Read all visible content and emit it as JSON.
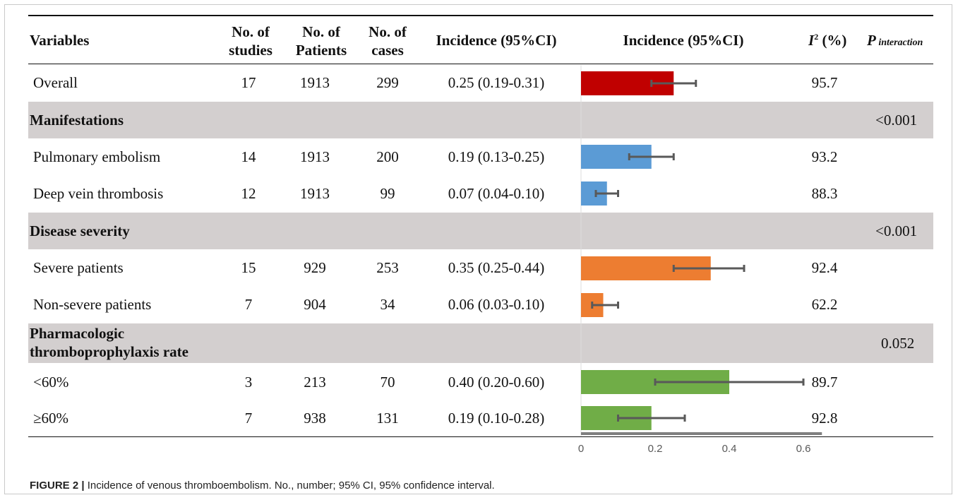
{
  "headers": {
    "variables": "Variables",
    "studies": [
      "No. of",
      "studies"
    ],
    "patients": [
      "No. of",
      "Patients"
    ],
    "cases": [
      "No. of",
      "cases"
    ],
    "incidence_text": "Incidence (95%CI)",
    "incidence_plot": "Incidence (95%CI)",
    "i2_letter": "I",
    "i2_sup": "2",
    "i2_unit": " (%)",
    "p_letter": "P",
    "p_sub": " interaction"
  },
  "rows": [
    {
      "kind": "data",
      "label": "Overall",
      "studies": "17",
      "patients": "1913",
      "cases": "299",
      "ci_text": "0.25 (0.19-0.31)",
      "i2": "95.7",
      "color": "#c00000"
    },
    {
      "kind": "group",
      "label": "Manifestations",
      "p": "<0.001"
    },
    {
      "kind": "data",
      "label": "Pulmonary embolism",
      "studies": "14",
      "patients": "1913",
      "cases": "200",
      "ci_text": "0.19 (0.13-0.25)",
      "i2": "93.2",
      "color": "#5b9bd5"
    },
    {
      "kind": "data",
      "label": "Deep vein thrombosis",
      "studies": "12",
      "patients": "1913",
      "cases": "99",
      "ci_text": "0.07 (0.04-0.10)",
      "i2": "88.3",
      "color": "#5b9bd5"
    },
    {
      "kind": "group",
      "label": "Disease severity",
      "p": "<0.001"
    },
    {
      "kind": "data",
      "label": "Severe patients",
      "studies": "15",
      "patients": "929",
      "cases": "253",
      "ci_text": "0.35 (0.25-0.44)",
      "i2": "92.4",
      "color": "#ed7d31"
    },
    {
      "kind": "data",
      "label": "Non-severe patients",
      "studies": "7",
      "patients": "904",
      "cases": "34",
      "ci_text": "0.06 (0.03-0.10)",
      "i2": "62.2",
      "color": "#ed7d31"
    },
    {
      "kind": "group",
      "label": [
        "Pharmacologic",
        "thromboprophylaxis rate"
      ],
      "p": "0.052"
    },
    {
      "kind": "data",
      "label": "<60%",
      "studies": "3",
      "patients": "213",
      "cases": "70",
      "ci_text": "0.40 (0.20-0.60)",
      "i2": "89.7",
      "color": "#70ad47"
    },
    {
      "kind": "data",
      "label": "≥60%",
      "studies": "7",
      "patients": "938",
      "cases": "131",
      "ci_text": "0.19 (0.10-0.28)",
      "i2": "92.8",
      "color": "#70ad47"
    }
  ],
  "caption": {
    "label": "FIGURE 2 |",
    "text": " Incidence of venous thromboembolism. No., number; 95% CI, 95% confidence interval."
  },
  "chart_data": {
    "type": "bar",
    "orientation": "horizontal",
    "categories": [
      "Overall",
      "Pulmonary embolism",
      "Deep vein thrombosis",
      "Severe patients",
      "Non-severe patients",
      "<60%",
      "≥60%"
    ],
    "values": [
      0.25,
      0.19,
      0.07,
      0.35,
      0.06,
      0.4,
      0.19
    ],
    "ci_low": [
      0.19,
      0.13,
      0.04,
      0.25,
      0.03,
      0.2,
      0.1
    ],
    "ci_high": [
      0.31,
      0.25,
      0.1,
      0.44,
      0.1,
      0.6,
      0.28
    ],
    "xlim": [
      0,
      0.65
    ],
    "xticks": [
      "0",
      "0.2",
      "0.4",
      "0.6"
    ],
    "xtick_values": [
      0,
      0.2,
      0.4,
      0.6
    ],
    "title": "Incidence (95%CI)",
    "error_bar_color": "#595959",
    "axis_color": "#7f7f7f",
    "tick_label_color": "#595959"
  }
}
